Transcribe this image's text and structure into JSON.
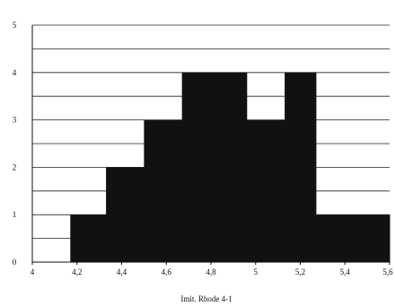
{
  "chart_data": {
    "type": "bar",
    "subtype": "histogram",
    "title": "",
    "xlabel": "Imit. Rhode 4-1",
    "ylabel": "",
    "xlim": [
      4,
      5.6
    ],
    "ylim": [
      0,
      5
    ],
    "grid": true,
    "x_ticks": [
      "4",
      "4,2",
      "4,4",
      "4,6",
      "4,8",
      "5",
      "5,2",
      "5,4",
      "5,6"
    ],
    "y_ticks": [
      "0",
      "1",
      "2",
      "3",
      "4",
      "5"
    ],
    "bins": [
      {
        "x0": 4.0,
        "x1": 4.17,
        "value": 0
      },
      {
        "x0": 4.17,
        "x1": 4.33,
        "value": 1
      },
      {
        "x0": 4.33,
        "x1": 4.5,
        "value": 2
      },
      {
        "x0": 4.5,
        "x1": 4.67,
        "value": 3
      },
      {
        "x0": 4.67,
        "x1": 4.83,
        "value": 4
      },
      {
        "x0": 4.83,
        "x1": 4.96,
        "value": 4
      },
      {
        "x0": 4.96,
        "x1": 5.13,
        "value": 3
      },
      {
        "x0": 5.13,
        "x1": 5.27,
        "value": 4
      },
      {
        "x0": 5.27,
        "x1": 5.43,
        "value": 1
      },
      {
        "x0": 5.43,
        "x1": 5.6,
        "value": 1
      }
    ],
    "bar_color": "#111111",
    "grid_color": "#222222"
  }
}
